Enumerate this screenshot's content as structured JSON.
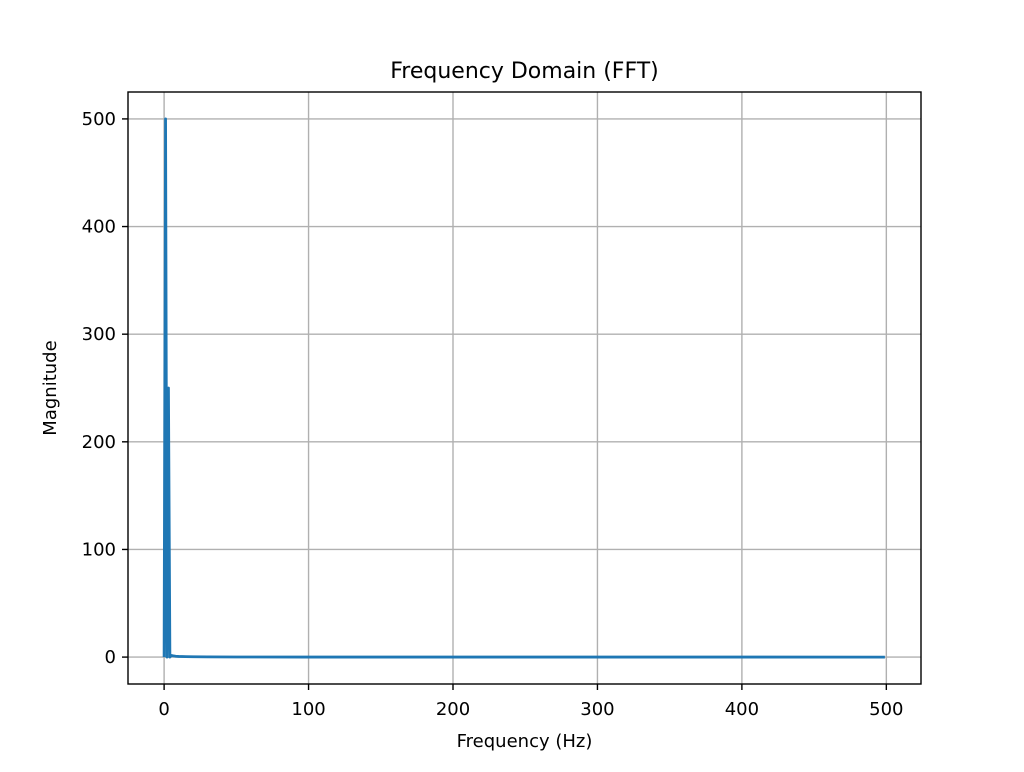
{
  "chart_data": {
    "type": "line",
    "title": "Frequency Domain (FFT)",
    "xlabel": "Frequency (Hz)",
    "ylabel": "Magnitude",
    "xlim": [
      -25,
      524
    ],
    "ylim": [
      -25,
      525
    ],
    "xticks": [
      0,
      100,
      200,
      300,
      400,
      500
    ],
    "yticks": [
      0,
      100,
      200,
      300,
      400,
      500
    ],
    "grid": true,
    "line_color": "#1f77b4",
    "series": [
      {
        "x": [
          0,
          1,
          2,
          3,
          4,
          5,
          6,
          7,
          8,
          10,
          15,
          20,
          30,
          50,
          100,
          200,
          300,
          400,
          499
        ],
        "y": [
          0,
          500,
          0,
          250,
          0,
          1.5,
          1.2,
          1.0,
          0.8,
          0.6,
          0.4,
          0.3,
          0.2,
          0.1,
          0.05,
          0.02,
          0.01,
          0.01,
          0
        ]
      }
    ]
  }
}
